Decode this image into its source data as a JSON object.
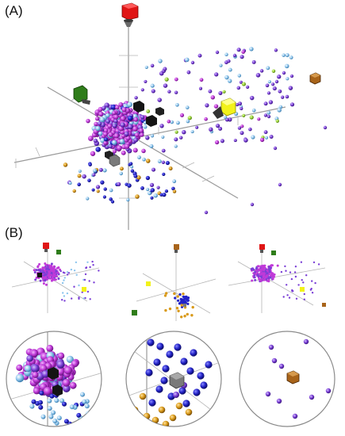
{
  "panels": {
    "a": {
      "label": "(A)"
    },
    "b": {
      "label": "(B)"
    }
  },
  "colors": {
    "magenta": "#c03ad8",
    "purple": "#7b3fd6",
    "light_blue": "#8ec6ee",
    "blue": "#2323c8",
    "orange": "#d99a1a",
    "red_cube": "#e01515",
    "green_cube": "#2f7d1a",
    "yellow_cube": "#f2f21a",
    "brown_cube": "#a8641a",
    "gray_cube": "#7a7a7a",
    "black_cube": "#141414"
  },
  "icons": [
    "red-cone-cube-icon",
    "green-cone-cube-icon",
    "yellow-cone-cube-icon",
    "brown-cube-icon",
    "black-cube-icon",
    "gray-cube-icon"
  ]
}
